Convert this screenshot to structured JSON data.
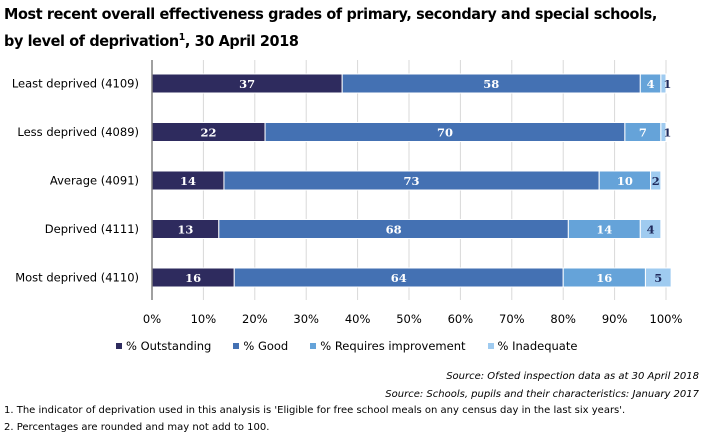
{
  "chart_data": {
    "type": "bar",
    "orientation": "horizontal",
    "stacked": true,
    "title": "Most recent overall effectiveness grades of primary, secondary and special schools, by level of deprivation",
    "title_superscript": "1",
    "title_suffix": ", 30 April 2018",
    "title_line1": "Most recent overall effectiveness grades of primary, secondary and special schools,",
    "title_line2_prefix": "by level of deprivation",
    "categories": [
      "Least deprived (4109)",
      "Less deprived (4089)",
      "Average (4091)",
      "Deprived (4111)",
      "Most deprived (4110)"
    ],
    "series": [
      {
        "name": "% Outstanding",
        "color": "#2e2b5e",
        "label_color": "#ffffff",
        "values": [
          37,
          22,
          14,
          13,
          16
        ]
      },
      {
        "name": "% Good",
        "color": "#4471b3",
        "label_color": "#ffffff",
        "values": [
          58,
          70,
          73,
          68,
          64
        ]
      },
      {
        "name": "% Requires improvement",
        "color": "#65a3d9",
        "label_color": "#ffffff",
        "values": [
          4,
          7,
          10,
          14,
          16
        ]
      },
      {
        "name": "% Inadequate",
        "color": "#9fcbf0",
        "label_color": "#1f2a5c",
        "values": [
          1,
          1,
          2,
          4,
          5
        ]
      }
    ],
    "xlim": [
      0,
      100
    ],
    "xticks": [
      "0%",
      "10%",
      "20%",
      "30%",
      "40%",
      "50%",
      "60%",
      "70%",
      "80%",
      "90%",
      "100%"
    ],
    "grid": true,
    "legend_position": "bottom"
  },
  "sources": [
    "Source: Ofsted inspection data as at 30 April 2018",
    "Source: Schools, pupils and their characteristics: January 2017"
  ],
  "notes": [
    "1. The indicator of deprivation used in this analysis is 'Eligible for free school meals on any census day in the last six years'.",
    "2. Percentages are rounded and may not add to 100."
  ]
}
